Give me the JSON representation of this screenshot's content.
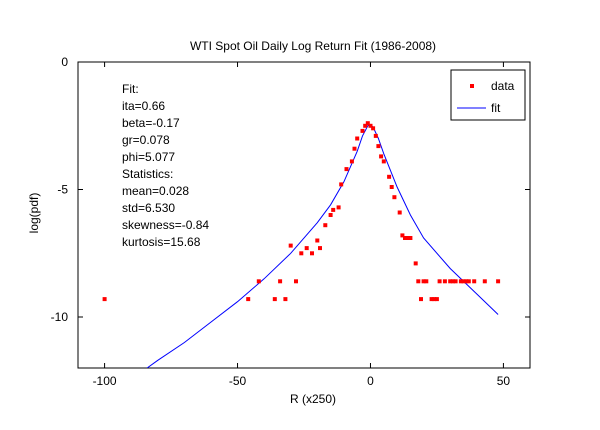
{
  "chart_data": {
    "type": "scatter",
    "title": "WTI Spot Oil Daily Log Return Fit (1986-2008)",
    "xlabel": "R (x250)",
    "ylabel": "log(pdf)",
    "xlim": [
      -110,
      60
    ],
    "ylim": [
      -12,
      0
    ],
    "xticks": [
      -100,
      -50,
      0,
      50
    ],
    "yticks": [
      0,
      -5,
      -10
    ],
    "xtick_labels": [
      "-100",
      "-50",
      "0",
      "50"
    ],
    "ytick_labels": [
      "0",
      "-5",
      "-10"
    ],
    "grid": false,
    "legend": {
      "placement": "top-right",
      "entries": [
        "data",
        "fit"
      ]
    },
    "colors": {
      "data": "#ff0000",
      "fit": "#0000ff"
    },
    "annotation": [
      "Fit:",
      "ita=0.66",
      "beta=-0.17",
      "gr=0.078",
      "phi=5.077",
      "Statistics:",
      "mean=0.028",
      "std=6.530",
      "skewness=-0.84",
      "kurtosis=15.68"
    ],
    "series": [
      {
        "name": "data",
        "kind": "scatter",
        "x": [
          -100,
          -46,
          -42,
          -36,
          -34,
          -32,
          -30,
          -28,
          -26,
          -24,
          -22,
          -20,
          -19,
          -17,
          -15,
          -14,
          -12,
          -11,
          -9,
          -7,
          -6,
          -5,
          -3,
          -2,
          -1,
          0,
          1,
          2,
          3,
          4,
          5,
          7,
          8,
          9,
          11,
          12,
          13,
          14,
          15,
          17,
          18,
          19,
          20,
          21,
          23,
          24,
          25,
          26,
          28,
          30,
          31,
          32,
          34,
          35,
          36,
          37,
          39,
          43,
          48
        ],
        "y": [
          -9.3,
          -9.3,
          -8.6,
          -9.3,
          -8.6,
          -9.3,
          -7.2,
          -8.6,
          -7.5,
          -7.3,
          -7.5,
          -7.0,
          -7.3,
          -6.4,
          -6.0,
          -5.8,
          -5.7,
          -4.8,
          -4.2,
          -3.9,
          -3.4,
          -3.0,
          -2.7,
          -2.5,
          -2.4,
          -2.5,
          -2.6,
          -2.9,
          -3.3,
          -3.7,
          -3.9,
          -4.5,
          -4.9,
          -5.3,
          -5.9,
          -6.8,
          -6.9,
          -6.9,
          -6.9,
          -7.9,
          -8.6,
          -9.3,
          -8.6,
          -8.6,
          -9.3,
          -9.3,
          -9.3,
          -8.6,
          -8.6,
          -8.6,
          -8.6,
          -8.6,
          -8.6,
          -8.6,
          -8.6,
          -8.6,
          -8.6,
          -8.6,
          -8.6
        ]
      },
      {
        "name": "fit",
        "kind": "line",
        "x": [
          -84,
          -80,
          -70,
          -60,
          -50,
          -40,
          -30,
          -20,
          -15,
          -10,
          -5,
          -3,
          -1,
          0,
          1,
          3,
          5,
          10,
          15,
          20,
          30,
          40,
          48
        ],
        "y": [
          -12.0,
          -11.7,
          -11.0,
          -10.2,
          -9.4,
          -8.5,
          -7.5,
          -6.3,
          -5.6,
          -4.7,
          -3.5,
          -2.9,
          -2.5,
          -2.45,
          -2.55,
          -3.0,
          -3.6,
          -4.9,
          -6.0,
          -6.9,
          -8.1,
          -9.1,
          -9.9
        ]
      }
    ]
  }
}
